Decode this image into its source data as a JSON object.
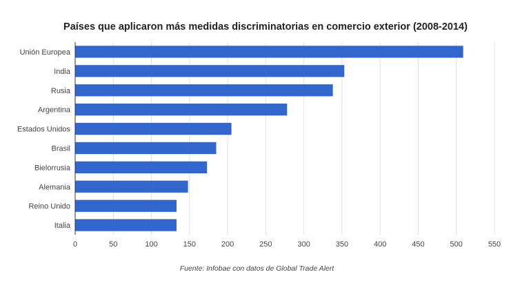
{
  "chart_data": {
    "type": "bar",
    "orientation": "horizontal",
    "title": "Países que aplicaron más medidas discriminatorias en comercio exterior (2008-2014)",
    "source": "Fuente: Infobae con datos de Global Trade Alert",
    "categories": [
      "Unión Europea",
      "India",
      "Rusia",
      "Argentina",
      "Estados Unidos",
      "Brasil",
      "Bielorrusia",
      "Alemania",
      "Reino Unido",
      "Italia"
    ],
    "values": [
      509,
      353,
      338,
      278,
      205,
      185,
      173,
      148,
      133,
      133
    ],
    "xlim": [
      0,
      550
    ],
    "xticks": [
      "0",
      "50",
      "100",
      "150",
      "200",
      "250",
      "300",
      "350",
      "400",
      "450",
      "500",
      "550"
    ],
    "grid": true,
    "legend": "none",
    "colors": {
      "bar": "#3366cc",
      "grid": "#e0e0e0",
      "axis": "#333333"
    }
  }
}
